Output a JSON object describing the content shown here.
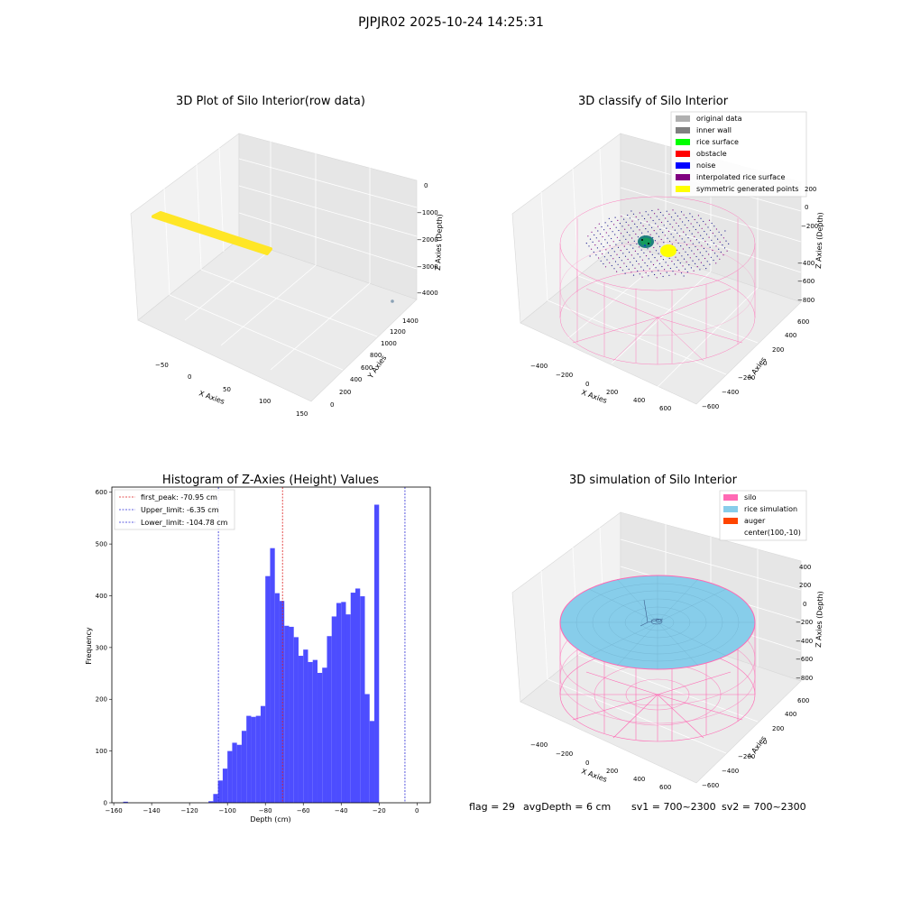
{
  "window_title": "PJPJR02 2025-10-24 14:25:31",
  "colors": {
    "yellow": "#ffe626",
    "bar": "#4d4dff",
    "red_line": "#dd1f1f",
    "blue_line": "#2b2bd6",
    "pink": "#ff69b4",
    "lightblue": "#87cdea",
    "navy": "#1a1a8c",
    "teal": "#1f7f7f"
  },
  "plot_raw": {
    "title": "3D Plot of Silo Interior(row data)",
    "x_label": "X Axies",
    "y_label": "Y Axies",
    "z_label": "Z Axies (Depth)",
    "x_ticks": [
      "−50",
      "0",
      "50",
      "100",
      "150"
    ],
    "y_ticks": [
      "0",
      "200",
      "400",
      "600",
      "800",
      "1000",
      "1200",
      "1400"
    ],
    "z_ticks": [
      "0",
      "−1000",
      "−2000",
      "−3000",
      "−4000"
    ]
  },
  "plot_classify": {
    "title": "3D classify of Silo Interior",
    "x_label": "X Axies",
    "y_label": "Y Axies",
    "z_label": "Z Axies (Depth)",
    "x_ticks": [
      "−400",
      "−200",
      "0",
      "200",
      "400",
      "600"
    ],
    "y_ticks": [
      "−600",
      "−400",
      "−200",
      "0",
      "200",
      "400",
      "600"
    ],
    "z_ticks": [
      "200",
      "0",
      "−200",
      "−400",
      "−600",
      "−800"
    ],
    "legend": [
      {
        "label": "original data",
        "color": "#b0b0b0"
      },
      {
        "label": "inner wall",
        "color": "#808080"
      },
      {
        "label": "rice surface",
        "color": "#00ff00"
      },
      {
        "label": "obstacle",
        "color": "#ff0000"
      },
      {
        "label": "noise",
        "color": "#0000ff"
      },
      {
        "label": "interpolated rice surface",
        "color": "#800080"
      },
      {
        "label": "symmetric generated points",
        "color": "#ffff00"
      }
    ]
  },
  "plot_sim": {
    "title": "3D simulation of Silo Interior",
    "x_label": "X Axies",
    "y_label": "Y Axies",
    "z_label": "Z Axies (Depth)",
    "x_ticks": [
      "−400",
      "−200",
      "0",
      "200",
      "400",
      "600"
    ],
    "y_ticks": [
      "−600",
      "−400",
      "−200",
      "0",
      "200",
      "400",
      "600"
    ],
    "z_ticks": [
      "400",
      "200",
      "0",
      "−200",
      "−400",
      "−600",
      "−800"
    ],
    "legend": [
      {
        "label": "silo",
        "color": "#ff69b4"
      },
      {
        "label": "rice simulation",
        "color": "#87cdea"
      },
      {
        "label": "auger",
        "color": "#ff4500"
      },
      {
        "label": "center(100,-10)",
        "color": ""
      }
    ]
  },
  "chart_data": {
    "type": "bar",
    "title": "Histogram of Z-Axies (Height) Values",
    "xlabel": "Depth (cm)",
    "ylabel": "Frequency",
    "xlim": [
      -161,
      7
    ],
    "ylim": [
      0,
      610
    ],
    "x_ticks": [
      -160,
      -140,
      -120,
      -100,
      -80,
      -60,
      -40,
      -20,
      0
    ],
    "y_ticks": [
      0,
      100,
      200,
      300,
      400,
      500,
      600
    ],
    "bin_width": 2.5,
    "bins": [
      {
        "start": -155,
        "value": 2
      },
      {
        "start": -110,
        "value": 3
      },
      {
        "start": -107.5,
        "value": 17
      },
      {
        "start": -105,
        "value": 43
      },
      {
        "start": -102.5,
        "value": 66
      },
      {
        "start": -100,
        "value": 100
      },
      {
        "start": -97.5,
        "value": 116
      },
      {
        "start": -95,
        "value": 112
      },
      {
        "start": -92.5,
        "value": 139
      },
      {
        "start": -90,
        "value": 168
      },
      {
        "start": -87.5,
        "value": 166
      },
      {
        "start": -85,
        "value": 168
      },
      {
        "start": -82.5,
        "value": 187
      },
      {
        "start": -80,
        "value": 438
      },
      {
        "start": -77.5,
        "value": 492
      },
      {
        "start": -75,
        "value": 405
      },
      {
        "start": -72.5,
        "value": 390
      },
      {
        "start": -70,
        "value": 342
      },
      {
        "start": -67.5,
        "value": 340
      },
      {
        "start": -65,
        "value": 320
      },
      {
        "start": -62.5,
        "value": 284
      },
      {
        "start": -60,
        "value": 296
      },
      {
        "start": -57.5,
        "value": 272
      },
      {
        "start": -55,
        "value": 276
      },
      {
        "start": -52.5,
        "value": 251
      },
      {
        "start": -50,
        "value": 261
      },
      {
        "start": -47.5,
        "value": 322
      },
      {
        "start": -45,
        "value": 360
      },
      {
        "start": -42.5,
        "value": 386
      },
      {
        "start": -40,
        "value": 388
      },
      {
        "start": -37.5,
        "value": 364
      },
      {
        "start": -35,
        "value": 406
      },
      {
        "start": -32.5,
        "value": 414
      },
      {
        "start": -30,
        "value": 399
      },
      {
        "start": -27.5,
        "value": 210
      },
      {
        "start": -25,
        "value": 158
      },
      {
        "start": -22.5,
        "value": 576
      }
    ],
    "vlines": [
      {
        "label": "first_peak: -70.95 cm",
        "x": -70.95,
        "color": "#dd1f1f"
      },
      {
        "label": "Upper_limit: -6.35 cm",
        "x": -6.35,
        "color": "#2b2bd6"
      },
      {
        "label": "Lower_limit: -104.78 cm",
        "x": -104.78,
        "color": "#2b2bd6"
      }
    ]
  },
  "status_bar": {
    "flag": "flag = 29",
    "avg_depth": "avgDepth = 6 cm",
    "sv1": "sv1 = 700~2300",
    "sv2": "sv2 = 700~2300"
  }
}
